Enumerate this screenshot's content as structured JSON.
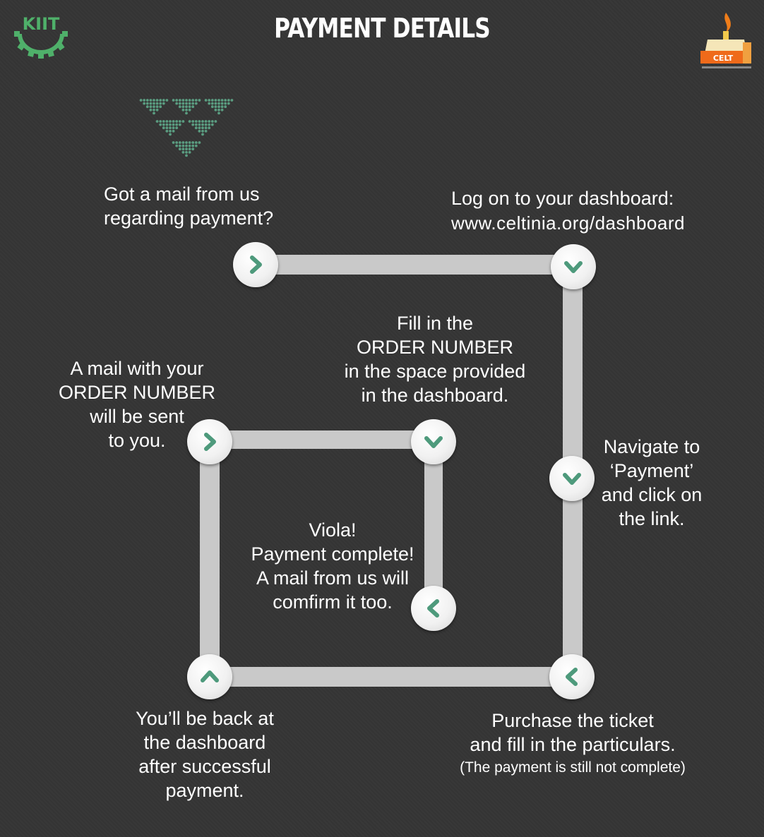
{
  "header": {
    "title": "PAYMENT DETAILS",
    "left_logo_text": "KIIT",
    "right_logo_text": "CELT"
  },
  "steps": {
    "got_mail": "Got a mail from us\nregarding payment?",
    "log_on": "Log on to your dashboard:",
    "dashboard_url": "www.celtinia.org/dashboard",
    "navigate": "Navigate to\n‘Payment’\nand click on\nthe link.",
    "purchase": "Purchase the ticket\nand fill in the particulars.",
    "purchase_note": "(The payment is still not complete)",
    "back_at_dashboard": "You’ll be back at\nthe dashboard\nafter successful\npayment.",
    "mail_order": "A mail with your\nORDER NUMBER\nwill be sent\nto you.",
    "fill_order": "Fill in the\nORDER NUMBER\nin the space provided\nin the dashboard.",
    "viola": "Viola!\nPayment complete!\nA mail from us will\ncomfirm it too."
  },
  "icons": {
    "arrow_color": "#4e9a7c",
    "accent_green": "#4fb06a",
    "dot_color": "#5a9c80"
  }
}
